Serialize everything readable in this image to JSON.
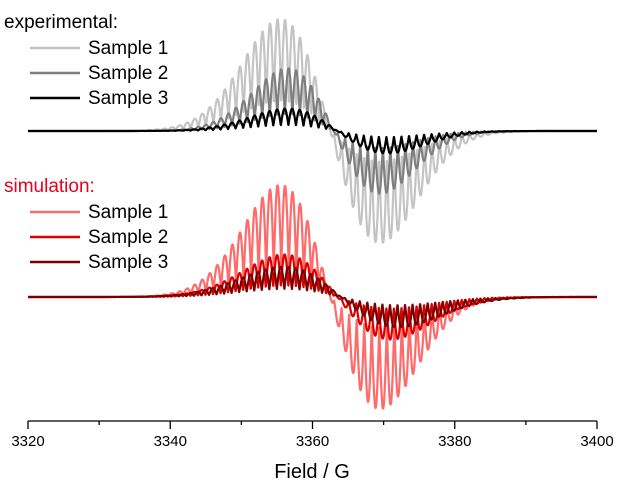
{
  "chart_data": {
    "type": "line",
    "xlabel": "Field / G",
    "ylabel": "",
    "xlim": [
      3320,
      3400
    ],
    "xticks": [
      "3320",
      "3340",
      "3360",
      "3380",
      "3400"
    ],
    "minor_tick_step": 10,
    "grid": false,
    "y_axis_shown": false,
    "groups": [
      {
        "title": "experimental:",
        "title_color": "#000000",
        "baseline": 0,
        "series": [
          {
            "name": "Sample 1",
            "color": "#c4c4c4",
            "amplitude": 1.0,
            "center": 3362.5,
            "envelope_width": 7.0,
            "hyperfine_spacing": 1.06
          },
          {
            "name": "Sample 2",
            "color": "#7f7f7f",
            "amplitude": 0.56,
            "center": 3363.0,
            "envelope_width": 6.5,
            "hyperfine_spacing": 1.06
          },
          {
            "name": "Sample 3",
            "color": "#000000",
            "amplitude": 0.2,
            "center": 3363.5,
            "envelope_width": 7.0,
            "hyperfine_spacing": 1.06
          }
        ]
      },
      {
        "title": "simulation:",
        "title_color": "#e8001c",
        "baseline": 0,
        "series": [
          {
            "name": "Sample 1",
            "color": "#ff6a6a",
            "amplitude": 1.0,
            "center": 3362.5,
            "envelope_width": 7.0,
            "hyperfine_spacing": 1.06
          },
          {
            "name": "Sample 2",
            "color": "#dd0000",
            "amplitude": 0.38,
            "center": 3363.5,
            "envelope_width": 7.5,
            "hyperfine_spacing": 1.06
          },
          {
            "name": "Sample 3",
            "color": "#7a0000",
            "amplitude": 0.27,
            "center": 3364.0,
            "envelope_width": 8.0,
            "hyperfine_spacing": 1.06
          }
        ]
      }
    ],
    "legend_position": "top-left"
  }
}
